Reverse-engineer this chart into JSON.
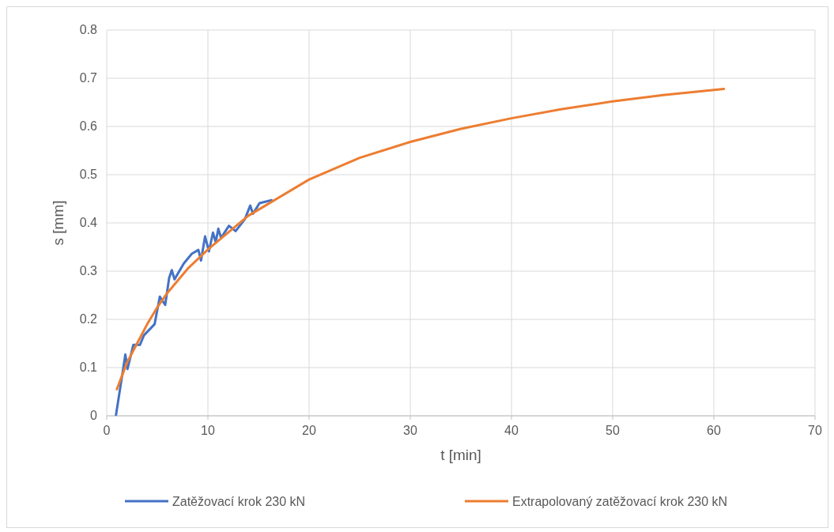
{
  "chart_data": {
    "type": "line",
    "xlabel": "t [min]",
    "ylabel": "s [mm]",
    "xlim": [
      0,
      70
    ],
    "xticks": [
      0,
      10,
      20,
      30,
      40,
      50,
      60,
      70
    ],
    "ylim": [
      0,
      0.8
    ],
    "yticks": [
      {
        "value": 0,
        "label": "0"
      },
      {
        "value": 0.1,
        "label": "0.1"
      },
      {
        "value": 0.2,
        "label": "0.2"
      },
      {
        "value": 0.3,
        "label": "0.3"
      },
      {
        "value": 0.4,
        "label": "0.4"
      },
      {
        "value": 0.5,
        "label": "0.5"
      },
      {
        "value": 0.6,
        "label": "0.6"
      },
      {
        "value": 0.7,
        "label": "0.7"
      },
      {
        "value": 0.8,
        "label": "0.8"
      }
    ],
    "grid": true,
    "legend": "bottom",
    "marker": "none",
    "line_style": "solid",
    "series": [
      {
        "name": "Zatěžovací krok 230 kN",
        "color": "#4472c4",
        "x": [
          0.92,
          1.58,
          1.84,
          2.05,
          2.63,
          3.28,
          3.68,
          4.73,
          5.25,
          5.78,
          6.17,
          6.43,
          6.7,
          7.62,
          8.41,
          9.06,
          9.32,
          9.72,
          10.1,
          10.5,
          10.77,
          11.03,
          11.3,
          12.08,
          12.74,
          13.66,
          14.18,
          14.45,
          15.1,
          16.29
        ],
        "values": [
          0.002,
          0.091,
          0.127,
          0.097,
          0.147,
          0.147,
          0.167,
          0.19,
          0.247,
          0.23,
          0.286,
          0.302,
          0.283,
          0.316,
          0.336,
          0.344,
          0.322,
          0.372,
          0.341,
          0.38,
          0.36,
          0.388,
          0.369,
          0.394,
          0.383,
          0.408,
          0.436,
          0.419,
          0.441,
          0.447
        ]
      },
      {
        "name": "Extrapolovaný zatěžovací krok 230 kN",
        "color": "#ed7d31",
        "x": [
          1,
          2,
          3,
          4,
          5,
          6,
          8,
          10,
          12,
          14,
          16,
          20,
          25,
          30,
          35,
          40,
          45,
          50,
          55,
          61
        ],
        "values": [
          0.055,
          0.11,
          0.15,
          0.19,
          0.225,
          0.255,
          0.305,
          0.345,
          0.38,
          0.415,
          0.44,
          0.49,
          0.535,
          0.568,
          0.595,
          0.617,
          0.636,
          0.652,
          0.665,
          0.678
        ]
      }
    ]
  }
}
